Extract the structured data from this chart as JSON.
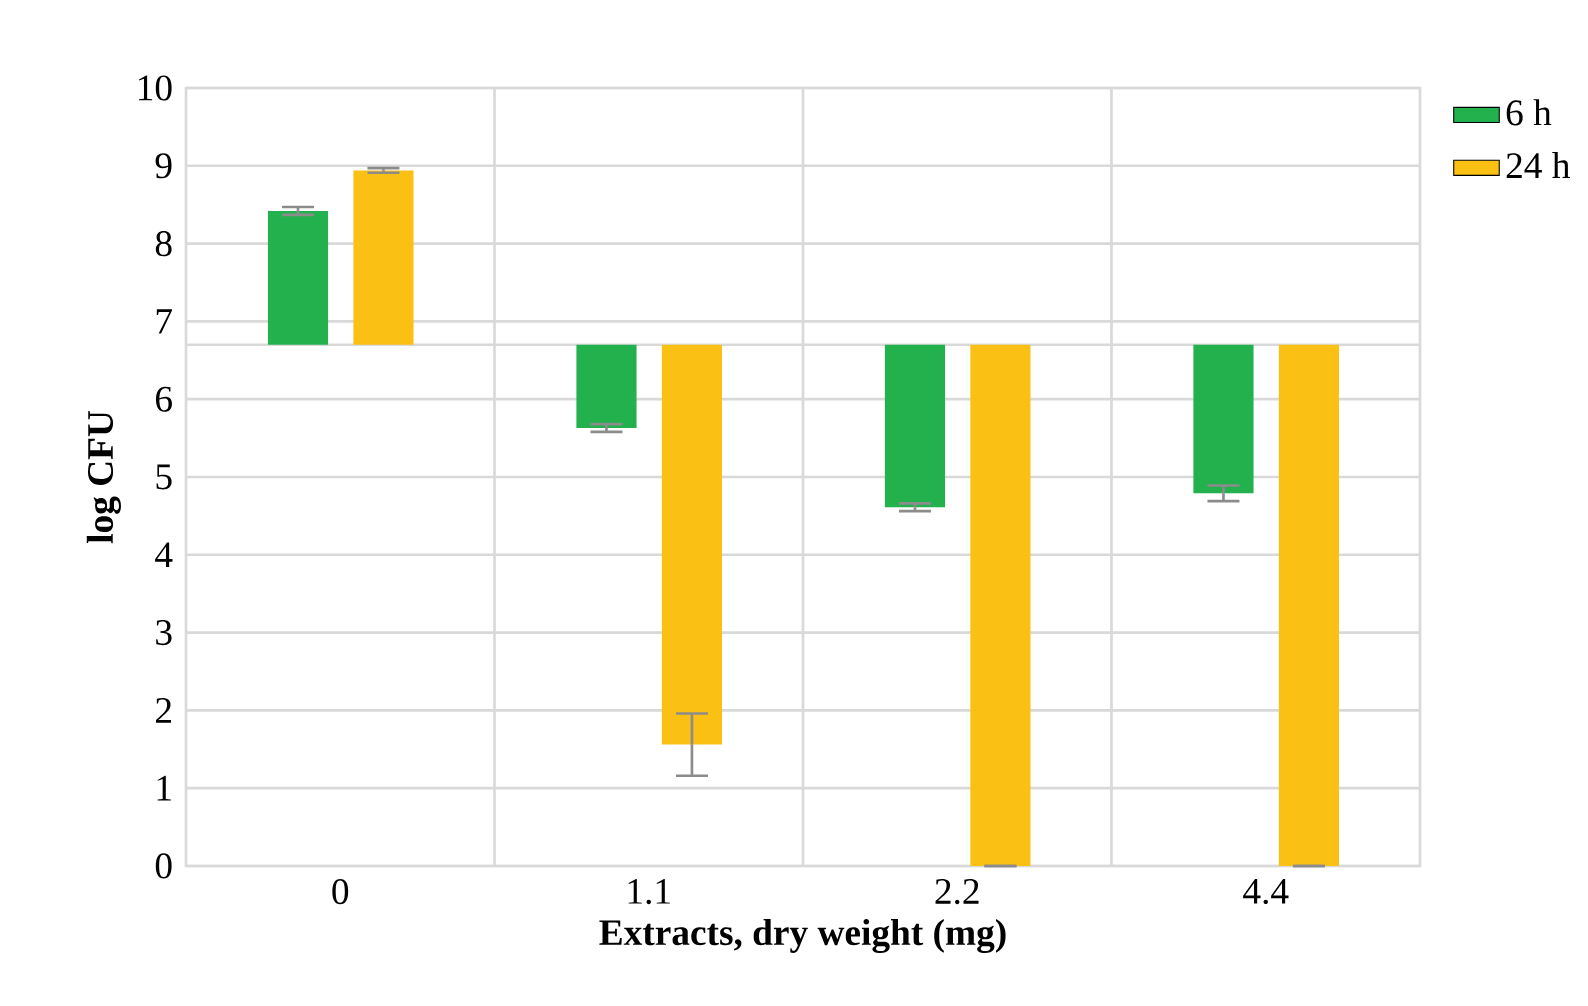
{
  "chart_data": {
    "type": "bar",
    "xlabel": "Extracts, dry weight (mg)",
    "ylabel": "log CFU",
    "categories": [
      "0",
      "1.1",
      "2.2",
      "4.4"
    ],
    "series": [
      {
        "name": "6 h",
        "color": "#23b14d",
        "base": [
          6.7,
          6.7,
          6.7,
          6.7
        ],
        "values": [
          1.72,
          -1.07,
          -2.09,
          -1.91
        ],
        "errors": [
          0.05,
          0.05,
          0.05,
          0.1
        ]
      },
      {
        "name": "24 h",
        "color": "#fbc014",
        "base": [
          6.7,
          6.7,
          6.7,
          6.7
        ],
        "values": [
          2.24,
          -5.14,
          -6.7,
          -6.7
        ],
        "errors": [
          0.03,
          0.4,
          0,
          0
        ]
      }
    ],
    "ylim": [
      0,
      10
    ],
    "yticks": [
      0,
      1,
      2,
      3,
      4,
      5,
      6,
      7,
      8,
      9,
      10
    ],
    "ref_lines": [
      {
        "axis": "y",
        "value": 6.7,
        "label": null
      }
    ],
    "grid": true,
    "legend": "top right"
  }
}
